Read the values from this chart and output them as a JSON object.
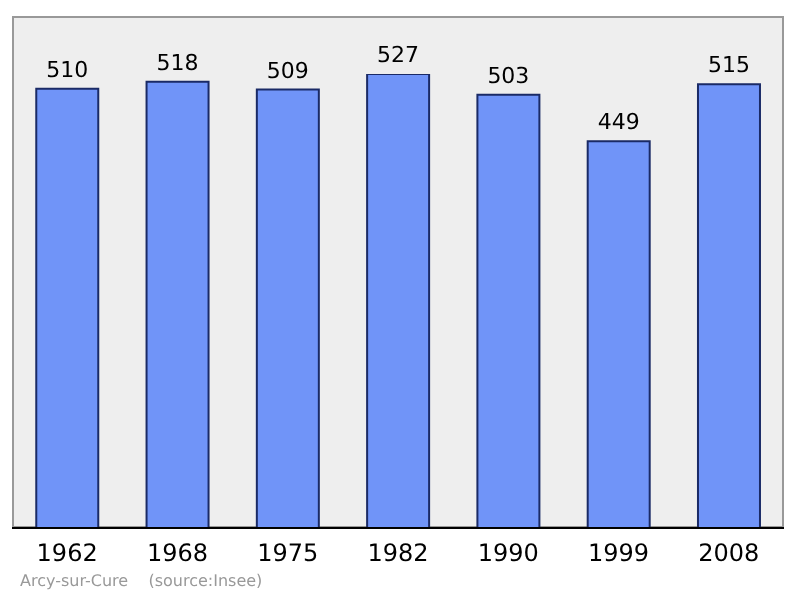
{
  "chart_data": {
    "type": "bar",
    "categories": [
      "1962",
      "1968",
      "1975",
      "1982",
      "1990",
      "1999",
      "2008"
    ],
    "values": [
      510,
      518,
      509,
      527,
      503,
      449,
      515
    ],
    "color": "#7094f8",
    "data_labels": true,
    "tick_labels": "x",
    "annotations": [
      "Arcy-sur-Cure    (source:Insee)"
    ]
  }
}
